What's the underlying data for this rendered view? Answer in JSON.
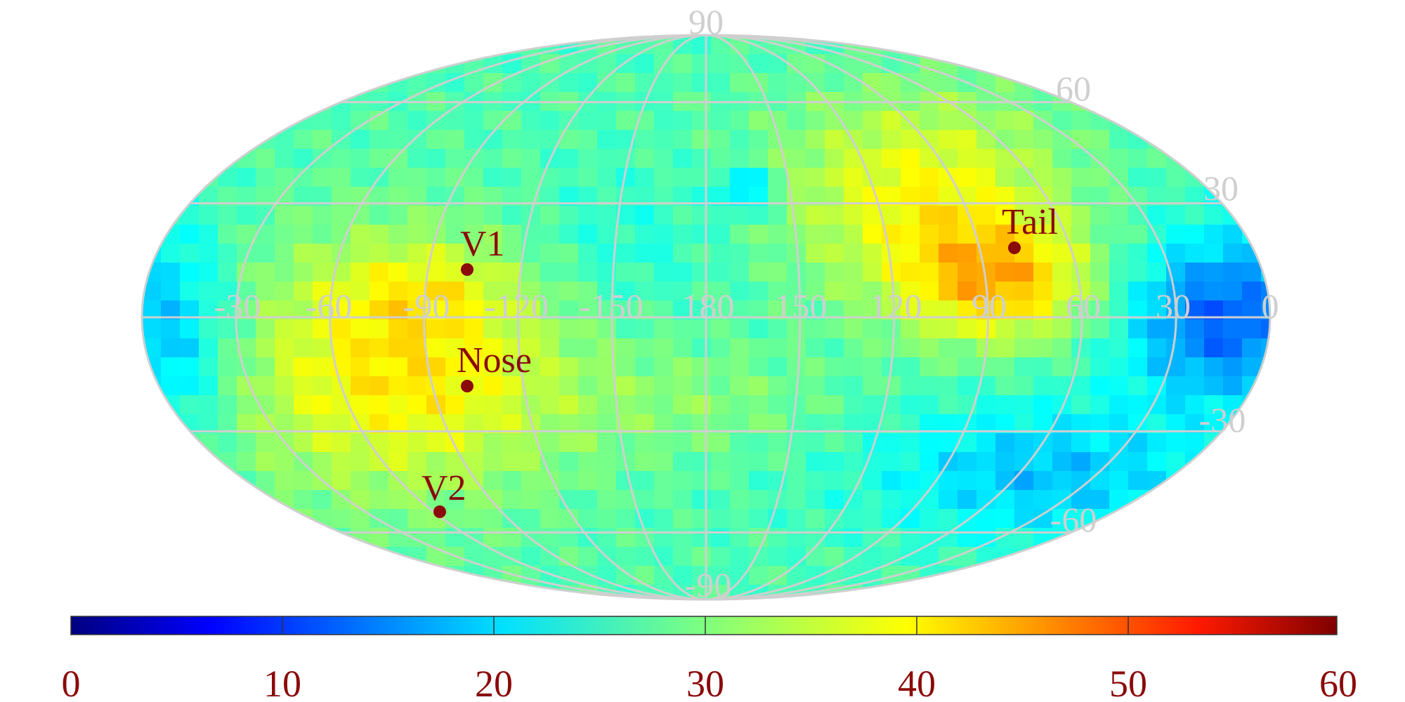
{
  "map": {
    "projection": "mollweide",
    "value_range": [
      0,
      60
    ],
    "colormap": "jet",
    "longitude_labels": [
      "-30",
      "-60",
      "-90",
      "-120",
      "-150",
      "180",
      "150",
      "120",
      "90",
      "60",
      "30",
      "0"
    ],
    "latitude_labels": [
      "90",
      "60",
      "30",
      "-30",
      "-60",
      "-90"
    ],
    "markers": [
      {
        "name": "V1",
        "label": "V1"
      },
      {
        "name": "Nose",
        "label": "Nose"
      },
      {
        "name": "Tail",
        "label": "Tail"
      },
      {
        "name": "V2",
        "label": "V2"
      }
    ],
    "grid_color": "#cfcfcf",
    "marker_color": "#8b0a0a"
  },
  "colorbar": {
    "ticks": [
      "0",
      "10",
      "20",
      "30",
      "40",
      "50",
      "60"
    ],
    "tick_color": "#8b0a0a"
  }
}
